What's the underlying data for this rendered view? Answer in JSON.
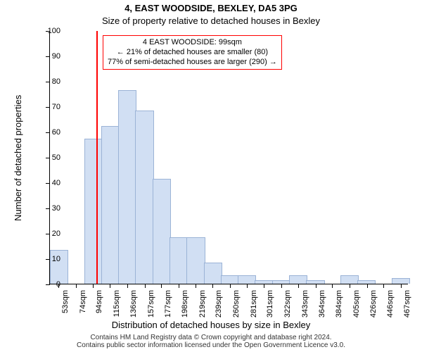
{
  "title": "4, EAST WOODSIDE, BEXLEY, DA5 3PG",
  "subtitle": "Size of property relative to detached houses in Bexley",
  "ylabel": "Number of detached properties",
  "xlabel": "Distribution of detached houses by size in Bexley",
  "footer_line1": "Contains HM Land Registry data © Crown copyright and database right 2024.",
  "footer_line2": "Contains public sector information licensed under the Open Government Licence v3.0.",
  "infobox": {
    "line1": "4 EAST WOODSIDE: 99sqm",
    "line2": "← 21% of detached houses are smaller (80)",
    "line3": "77% of semi-detached houses are larger (290) →",
    "border_color": "#ff0000",
    "bg_color": "#ffffff"
  },
  "ytick_max": 100,
  "ytick_step": 10,
  "xtick_start": 53,
  "xtick_step": 20.7,
  "xtick_count": 21,
  "xtick_unit": "sqm",
  "chart": {
    "type": "histogram",
    "bar_fill": "#d1dff3",
    "bar_stroke": "#9bb3d6",
    "grid_color": "#e0e0e0",
    "background_color": "#ffffff",
    "marker_color": "#ff0000",
    "marker_x_value": 99,
    "x_min": 42,
    "x_max": 476,
    "heights": [
      13,
      0,
      57,
      62,
      76,
      68,
      41,
      18,
      18,
      8,
      3,
      3,
      1,
      1,
      3,
      1,
      0,
      3,
      1,
      0,
      2
    ]
  },
  "style": {
    "title_fontsize": 13,
    "subtitle_fontsize": 13,
    "axis_font_color": "#000000"
  }
}
